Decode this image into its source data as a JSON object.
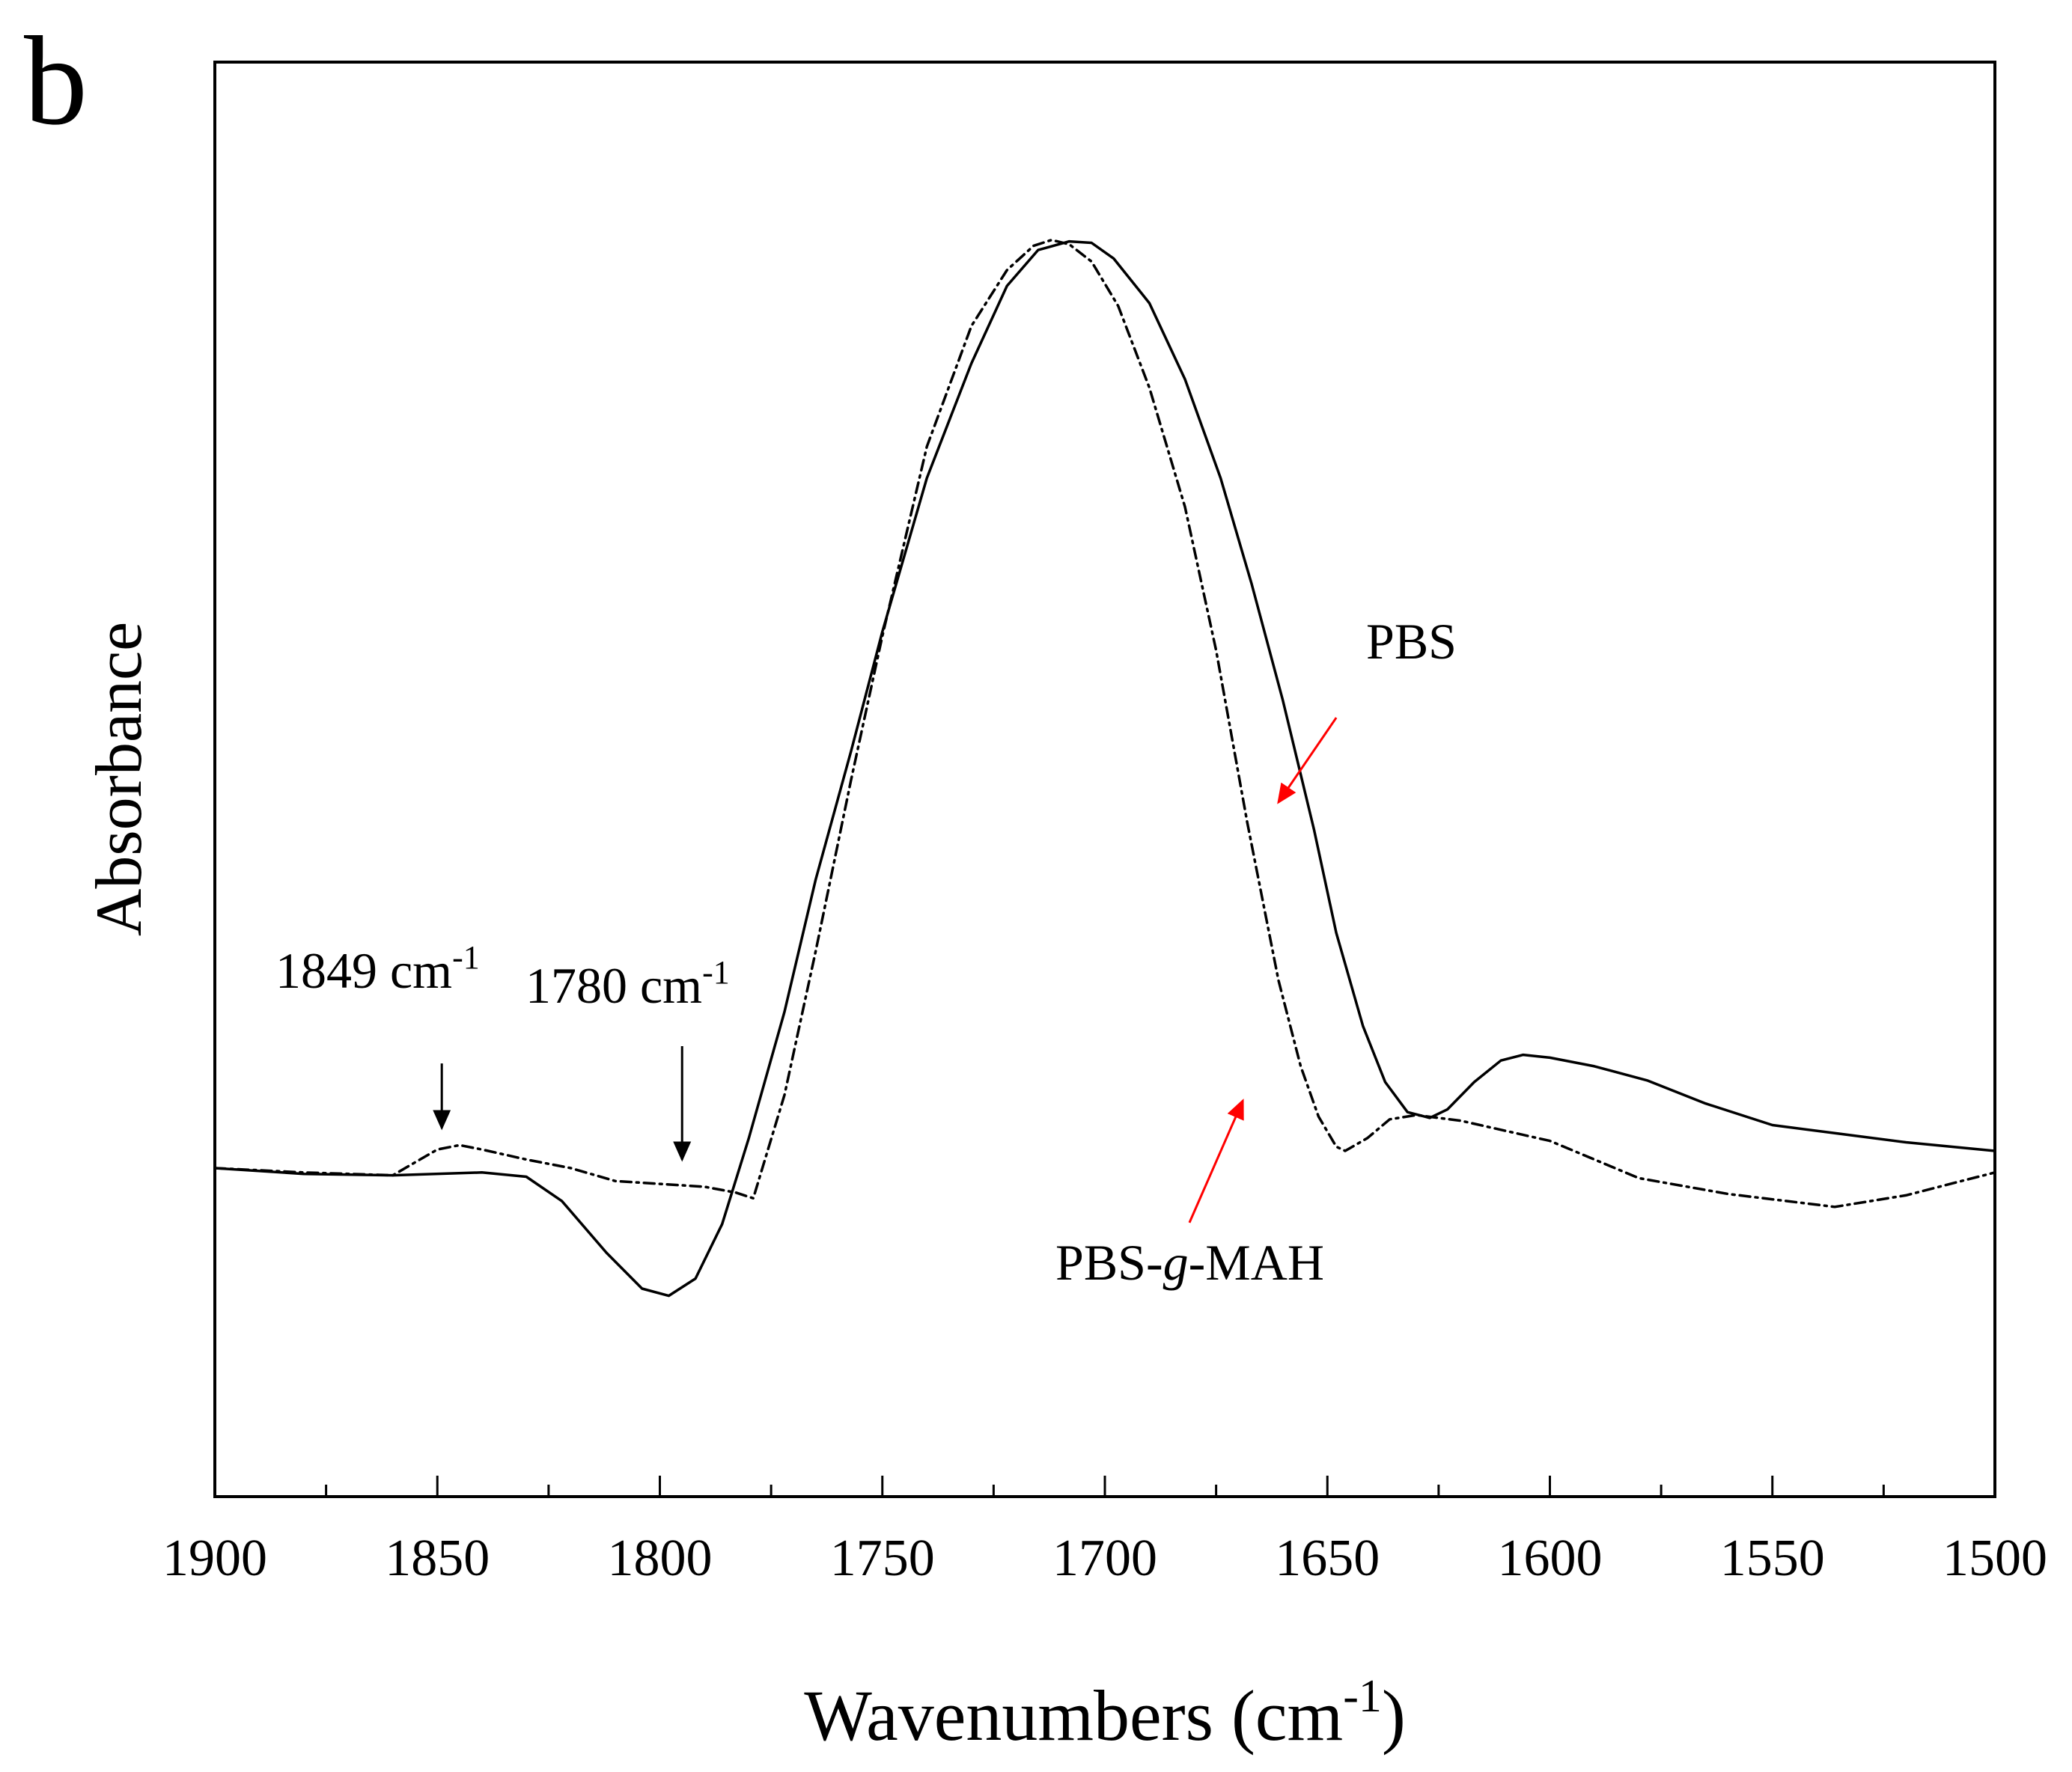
{
  "chart_data": {
    "type": "line",
    "panel_label": "b",
    "title": "",
    "xlabel": "Wavenumbers (cm",
    "xlabel_sup": "-1",
    "xlabel_close": ")",
    "ylabel": "Absorbance",
    "xlim": [
      1900,
      1500
    ],
    "ylim": [
      0,
      100
    ],
    "x_ticks": [
      1900,
      1850,
      1800,
      1750,
      1700,
      1650,
      1600,
      1550,
      1500
    ],
    "x_tick_labels": [
      "1900",
      "1850",
      "1800",
      "1750",
      "1700",
      "1650",
      "1600",
      "1550",
      "1500"
    ],
    "x_minor_tick_step": 25,
    "y_ticks_shown": false,
    "grid": false,
    "series": [
      {
        "name": "PBS",
        "style": "solid",
        "x": [
          1900,
          1880,
          1860,
          1840,
          1830,
          1822,
          1812,
          1804,
          1798,
          1792,
          1786,
          1780,
          1772,
          1765,
          1757,
          1750,
          1740,
          1730,
          1722,
          1715,
          1708,
          1703,
          1698,
          1690,
          1682,
          1674,
          1667,
          1660,
          1653,
          1648,
          1642,
          1637,
          1632,
          1627,
          1623,
          1617,
          1611,
          1606,
          1600,
          1590,
          1578,
          1565,
          1550,
          1535,
          1520,
          1500
        ],
        "y": [
          22.9,
          22.5,
          22.4,
          22.6,
          22.3,
          20.6,
          17.0,
          14.5,
          14.0,
          15.2,
          19.0,
          25.0,
          33.8,
          43.0,
          52.0,
          60.3,
          71.0,
          79.0,
          84.4,
          86.9,
          87.5,
          87.4,
          86.3,
          83.2,
          77.9,
          71.0,
          63.6,
          55.5,
          46.5,
          39.3,
          32.8,
          28.9,
          26.8,
          26.4,
          27.0,
          28.9,
          30.4,
          30.8,
          30.6,
          30.0,
          29.0,
          27.4,
          25.9,
          25.3,
          24.7,
          24.1
        ]
      },
      {
        "name": "PBS-g-MAH",
        "style": "dashdot",
        "x": [
          1900,
          1880,
          1870,
          1860,
          1855,
          1850,
          1845,
          1840,
          1830,
          1820,
          1810,
          1800,
          1790,
          1783,
          1779,
          1772,
          1765,
          1757,
          1750,
          1740,
          1730,
          1722,
          1716,
          1712,
          1708,
          1703,
          1697,
          1690,
          1682,
          1675,
          1668,
          1661,
          1656,
          1652,
          1648,
          1646,
          1641,
          1636,
          1630,
          1620,
          1600,
          1580,
          1560,
          1536,
          1520,
          1510,
          1500
        ],
        "y": [
          22.9,
          22.6,
          22.5,
          22.4,
          23.3,
          24.2,
          24.5,
          24.2,
          23.5,
          22.9,
          22.0,
          21.8,
          21.6,
          21.2,
          20.8,
          28.0,
          38.0,
          50.0,
          60.0,
          73.2,
          81.6,
          85.5,
          87.2,
          87.6,
          87.3,
          86.1,
          83.0,
          77.3,
          69.0,
          59.0,
          47.0,
          36.0,
          30.0,
          26.5,
          24.4,
          24.1,
          25.0,
          26.3,
          26.6,
          26.2,
          24.8,
          22.2,
          21.1,
          20.2,
          21.0,
          21.8,
          22.6
        ]
      }
    ],
    "annotations": [
      {
        "id": "ann-1849",
        "text": "1849 cm",
        "sup": "-1",
        "arrow_x": 1849,
        "arrow_y_from": 30.2,
        "arrow_y_to": 25.7,
        "color": "#000000"
      },
      {
        "id": "ann-1780",
        "text": "1780 cm",
        "sup": "-1",
        "arrow_x": 1795,
        "arrow_y_from": 31.4,
        "arrow_y_to": 23.5,
        "color": "#000000"
      },
      {
        "id": "ann-pbs",
        "text": "PBS",
        "color": "#ff0000",
        "arrow_x_from": 1648,
        "arrow_y_from": 54.3,
        "arrow_x_to": 1661,
        "arrow_y_to": 48.4
      },
      {
        "id": "ann-pbsgmah",
        "text_before": "PBS-",
        "text_italic": "g",
        "text_after": "-MAH",
        "color": "#ff0000",
        "arrow_x_from": 1681,
        "arrow_y_from": 19.1,
        "arrow_x_to": 1669,
        "arrow_y_to": 27.6
      }
    ]
  }
}
